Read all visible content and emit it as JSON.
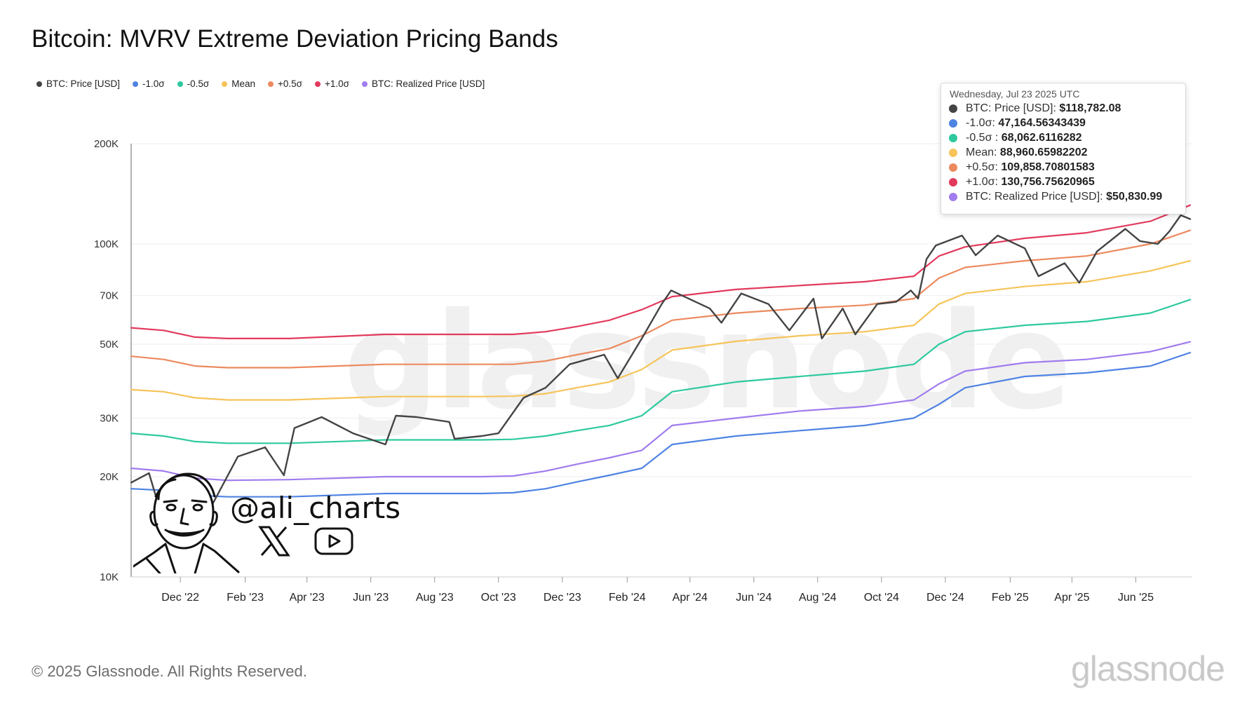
{
  "header": {
    "title": "Bitcoin: MVRV Extreme Deviation Pricing Bands"
  },
  "legend": [
    {
      "label": "BTC: Price [USD]",
      "color": "#444444"
    },
    {
      "label": "-1.0σ",
      "color": "#4f83e3"
    },
    {
      "label": "-0.5σ",
      "color": "#2ec99e"
    },
    {
      "label": "Mean",
      "color": "#f6c45a"
    },
    {
      "label": "+0.5σ",
      "color": "#ec8a5f"
    },
    {
      "label": "+1.0σ",
      "color": "#e23a5c"
    },
    {
      "label": "BTC: Realized Price [USD]",
      "color": "#a07cee"
    }
  ],
  "tooltip": {
    "date": "Wednesday, Jul 23 2025 UTC",
    "rows": [
      {
        "label": "BTC: Price [USD]: ",
        "value": "$118,782.08",
        "color": "#444444"
      },
      {
        "label": "-1.0σ: ",
        "value": "47,164.56343439",
        "color": "#4f83e3"
      },
      {
        "label": "-0.5σ : ",
        "value": "68,062.6116282",
        "color": "#2ec99e"
      },
      {
        "label": "Mean: ",
        "value": "88,960.65982202",
        "color": "#f6c45a"
      },
      {
        "label": "+0.5σ: ",
        "value": "109,858.70801583",
        "color": "#ec8a5f"
      },
      {
        "label": "+1.0σ: ",
        "value": "130,756.75620965",
        "color": "#e23a5c"
      },
      {
        "label": "BTC: Realized Price [USD]: ",
        "value": "$50,830.99",
        "color": "#a07cee"
      }
    ]
  },
  "branding": {
    "handle": "@ali_charts",
    "copyright": "© 2025 Glassnode. All Rights Reserved.",
    "brand": "glassnode",
    "watermark": "glassnode",
    "social_icons": [
      "x-icon",
      "youtube-icon"
    ]
  },
  "chart_data": {
    "type": "line",
    "title": "Bitcoin: MVRV Extreme Deviation Pricing Bands",
    "yscale": "log",
    "ylim": [
      10000,
      200000
    ],
    "yticks": [
      10000,
      20000,
      30000,
      50000,
      70000,
      100000,
      200000
    ],
    "ytick_labels": [
      "10K",
      "20K",
      "30K",
      "50K",
      "70K",
      "100K",
      "200K"
    ],
    "xlim": [
      "2022-10-15",
      "2025-07-25"
    ],
    "xticks": [
      "2022-12-01",
      "2023-02-01",
      "2023-04-01",
      "2023-06-01",
      "2023-08-01",
      "2023-10-01",
      "2023-12-01",
      "2024-02-01",
      "2024-04-01",
      "2024-06-01",
      "2024-08-01",
      "2024-10-01",
      "2024-12-01",
      "2025-02-01",
      "2025-04-01",
      "2025-06-01"
    ],
    "xtick_labels": [
      "Dec '22",
      "Feb '23",
      "Apr '23",
      "Jun '23",
      "Aug '23",
      "Oct '23",
      "Dec '23",
      "Feb '24",
      "Apr '24",
      "Jun '24",
      "Aug '24",
      "Oct '24",
      "Dec '24",
      "Feb '25",
      "Apr '25",
      "Jun '25"
    ],
    "series": [
      {
        "name": "+1.0σ",
        "color": "#e23a5c",
        "points": [
          [
            "2022-10-15",
            56000
          ],
          [
            "2022-11-15",
            55000
          ],
          [
            "2022-12-15",
            52500
          ],
          [
            "2023-01-15",
            52000
          ],
          [
            "2023-03-15",
            52000
          ],
          [
            "2023-06-15",
            53500
          ],
          [
            "2023-09-15",
            53500
          ],
          [
            "2023-10-15",
            53500
          ],
          [
            "2023-11-15",
            54500
          ],
          [
            "2023-12-15",
            56500
          ],
          [
            "2024-01-15",
            59000
          ],
          [
            "2024-02-15",
            63500
          ],
          [
            "2024-03-15",
            69500
          ],
          [
            "2024-05-15",
            73000
          ],
          [
            "2024-07-15",
            75000
          ],
          [
            "2024-09-15",
            77000
          ],
          [
            "2024-11-01",
            80000
          ],
          [
            "2024-11-25",
            92000
          ],
          [
            "2024-12-20",
            98000
          ],
          [
            "2025-02-15",
            104000
          ],
          [
            "2025-04-15",
            108000
          ],
          [
            "2025-06-15",
            117000
          ],
          [
            "2025-07-23",
            130757
          ]
        ]
      },
      {
        "name": "+0.5σ",
        "color": "#ec8a5f",
        "points": [
          [
            "2022-10-15",
            46000
          ],
          [
            "2022-11-15",
            45000
          ],
          [
            "2022-12-15",
            43000
          ],
          [
            "2023-01-15",
            42500
          ],
          [
            "2023-03-15",
            42500
          ],
          [
            "2023-06-15",
            43500
          ],
          [
            "2023-09-15",
            43500
          ],
          [
            "2023-10-15",
            43500
          ],
          [
            "2023-11-15",
            44500
          ],
          [
            "2023-12-15",
            46500
          ],
          [
            "2024-01-15",
            48500
          ],
          [
            "2024-02-15",
            53000
          ],
          [
            "2024-03-15",
            59000
          ],
          [
            "2024-05-15",
            62000
          ],
          [
            "2024-07-15",
            64000
          ],
          [
            "2024-09-15",
            65500
          ],
          [
            "2024-11-01",
            68500
          ],
          [
            "2024-11-25",
            79000
          ],
          [
            "2024-12-20",
            85000
          ],
          [
            "2025-02-15",
            89000
          ],
          [
            "2025-04-15",
            92000
          ],
          [
            "2025-06-15",
            100000
          ],
          [
            "2025-07-23",
            109859
          ]
        ]
      },
      {
        "name": "Mean",
        "color": "#f6c45a",
        "points": [
          [
            "2022-10-15",
            36500
          ],
          [
            "2022-11-15",
            36000
          ],
          [
            "2022-12-15",
            34500
          ],
          [
            "2023-01-15",
            34000
          ],
          [
            "2023-03-15",
            34000
          ],
          [
            "2023-06-15",
            34800
          ],
          [
            "2023-09-15",
            34800
          ],
          [
            "2023-10-15",
            34900
          ],
          [
            "2023-11-15",
            35500
          ],
          [
            "2023-12-15",
            37000
          ],
          [
            "2024-01-15",
            38500
          ],
          [
            "2024-02-15",
            42000
          ],
          [
            "2024-03-15",
            48000
          ],
          [
            "2024-05-15",
            51000
          ],
          [
            "2024-07-15",
            53000
          ],
          [
            "2024-09-15",
            54500
          ],
          [
            "2024-11-01",
            57000
          ],
          [
            "2024-11-25",
            66000
          ],
          [
            "2024-12-20",
            71000
          ],
          [
            "2025-02-15",
            74500
          ],
          [
            "2025-04-15",
            77000
          ],
          [
            "2025-06-15",
            83000
          ],
          [
            "2025-07-23",
            88961
          ]
        ]
      },
      {
        "name": "-0.5σ",
        "color": "#2ec99e",
        "points": [
          [
            "2022-10-15",
            27000
          ],
          [
            "2022-11-15",
            26500
          ],
          [
            "2022-12-15",
            25500
          ],
          [
            "2023-01-15",
            25200
          ],
          [
            "2023-03-15",
            25200
          ],
          [
            "2023-06-15",
            25800
          ],
          [
            "2023-09-15",
            25800
          ],
          [
            "2023-10-15",
            25900
          ],
          [
            "2023-11-15",
            26500
          ],
          [
            "2023-12-15",
            27500
          ],
          [
            "2024-01-15",
            28500
          ],
          [
            "2024-02-15",
            30500
          ],
          [
            "2024-03-15",
            36000
          ],
          [
            "2024-05-15",
            38500
          ],
          [
            "2024-07-15",
            40000
          ],
          [
            "2024-09-15",
            41500
          ],
          [
            "2024-11-01",
            43500
          ],
          [
            "2024-11-25",
            50000
          ],
          [
            "2024-12-20",
            54500
          ],
          [
            "2025-02-15",
            57000
          ],
          [
            "2025-04-15",
            58500
          ],
          [
            "2025-06-15",
            62000
          ],
          [
            "2025-07-23",
            68063
          ]
        ]
      },
      {
        "name": "BTC: Realized Price [USD]",
        "color": "#a07cee",
        "points": [
          [
            "2022-10-15",
            21200
          ],
          [
            "2022-11-15",
            20800
          ],
          [
            "2022-12-15",
            19800
          ],
          [
            "2023-01-15",
            19500
          ],
          [
            "2023-03-15",
            19600
          ],
          [
            "2023-06-15",
            20000
          ],
          [
            "2023-09-15",
            20000
          ],
          [
            "2023-10-15",
            20100
          ],
          [
            "2023-11-15",
            20800
          ],
          [
            "2023-12-15",
            21800
          ],
          [
            "2024-01-15",
            22800
          ],
          [
            "2024-02-15",
            24000
          ],
          [
            "2024-03-15",
            28500
          ],
          [
            "2024-05-15",
            30000
          ],
          [
            "2024-07-15",
            31500
          ],
          [
            "2024-09-15",
            32500
          ],
          [
            "2024-11-01",
            34000
          ],
          [
            "2024-11-25",
            38000
          ],
          [
            "2024-12-20",
            41500
          ],
          [
            "2025-02-15",
            44000
          ],
          [
            "2025-04-15",
            45000
          ],
          [
            "2025-06-15",
            47500
          ],
          [
            "2025-07-23",
            50831
          ]
        ]
      },
      {
        "name": "-1.0σ",
        "color": "#4f83e3",
        "points": [
          [
            "2022-10-15",
            18400
          ],
          [
            "2022-11-15",
            18200
          ],
          [
            "2022-12-15",
            17600
          ],
          [
            "2023-01-15",
            17400
          ],
          [
            "2023-03-15",
            17400
          ],
          [
            "2023-06-15",
            17800
          ],
          [
            "2023-09-15",
            17800
          ],
          [
            "2023-10-15",
            17900
          ],
          [
            "2023-11-15",
            18400
          ],
          [
            "2023-12-15",
            19300
          ],
          [
            "2024-01-15",
            20200
          ],
          [
            "2024-02-15",
            21200
          ],
          [
            "2024-03-15",
            25000
          ],
          [
            "2024-05-15",
            26500
          ],
          [
            "2024-07-15",
            27500
          ],
          [
            "2024-09-15",
            28500
          ],
          [
            "2024-11-01",
            30000
          ],
          [
            "2024-11-25",
            33000
          ],
          [
            "2024-12-20",
            37000
          ],
          [
            "2025-02-15",
            40000
          ],
          [
            "2025-04-15",
            41000
          ],
          [
            "2025-06-15",
            43000
          ],
          [
            "2025-07-23",
            47165
          ]
        ]
      },
      {
        "name": "BTC: Price [USD]",
        "color": "#444444",
        "points": [
          [
            "2022-10-15",
            19200
          ],
          [
            "2022-11-01",
            20500
          ],
          [
            "2022-11-10",
            16500
          ],
          [
            "2022-12-15",
            17200
          ],
          [
            "2023-01-01",
            16600
          ],
          [
            "2023-01-25",
            23000
          ],
          [
            "2023-02-20",
            24500
          ],
          [
            "2023-03-10",
            20200
          ],
          [
            "2023-03-20",
            28000
          ],
          [
            "2023-04-15",
            30200
          ],
          [
            "2023-05-15",
            27000
          ],
          [
            "2023-06-15",
            25000
          ],
          [
            "2023-06-25",
            30500
          ],
          [
            "2023-07-15",
            30200
          ],
          [
            "2023-08-15",
            29200
          ],
          [
            "2023-08-20",
            26000
          ],
          [
            "2023-09-15",
            26500
          ],
          [
            "2023-10-01",
            27000
          ],
          [
            "2023-10-25",
            34500
          ],
          [
            "2023-11-15",
            37000
          ],
          [
            "2023-12-08",
            43500
          ],
          [
            "2024-01-10",
            46500
          ],
          [
            "2024-01-23",
            39500
          ],
          [
            "2024-02-15",
            52000
          ],
          [
            "2024-03-05",
            66000
          ],
          [
            "2024-03-14",
            72500
          ],
          [
            "2024-04-20",
            64000
          ],
          [
            "2024-05-01",
            58000
          ],
          [
            "2024-05-20",
            71000
          ],
          [
            "2024-06-15",
            66000
          ],
          [
            "2024-07-05",
            55000
          ],
          [
            "2024-07-28",
            68500
          ],
          [
            "2024-08-05",
            52000
          ],
          [
            "2024-08-25",
            64000
          ],
          [
            "2024-09-06",
            53500
          ],
          [
            "2024-09-27",
            66000
          ],
          [
            "2024-10-15",
            67000
          ],
          [
            "2024-10-29",
            72500
          ],
          [
            "2024-11-05",
            68500
          ],
          [
            "2024-11-13",
            90000
          ],
          [
            "2024-11-22",
            99000
          ],
          [
            "2024-12-17",
            106000
          ],
          [
            "2024-12-30",
            92500
          ],
          [
            "2025-01-20",
            106000
          ],
          [
            "2025-02-15",
            97000
          ],
          [
            "2025-02-28",
            80000
          ],
          [
            "2025-03-25",
            87500
          ],
          [
            "2025-04-08",
            76500
          ],
          [
            "2025-04-25",
            95000
          ],
          [
            "2025-05-22",
            111000
          ],
          [
            "2025-06-05",
            102000
          ],
          [
            "2025-06-22",
            100000
          ],
          [
            "2025-07-03",
            109000
          ],
          [
            "2025-07-14",
            122000
          ],
          [
            "2025-07-23",
            118782
          ]
        ]
      }
    ]
  }
}
